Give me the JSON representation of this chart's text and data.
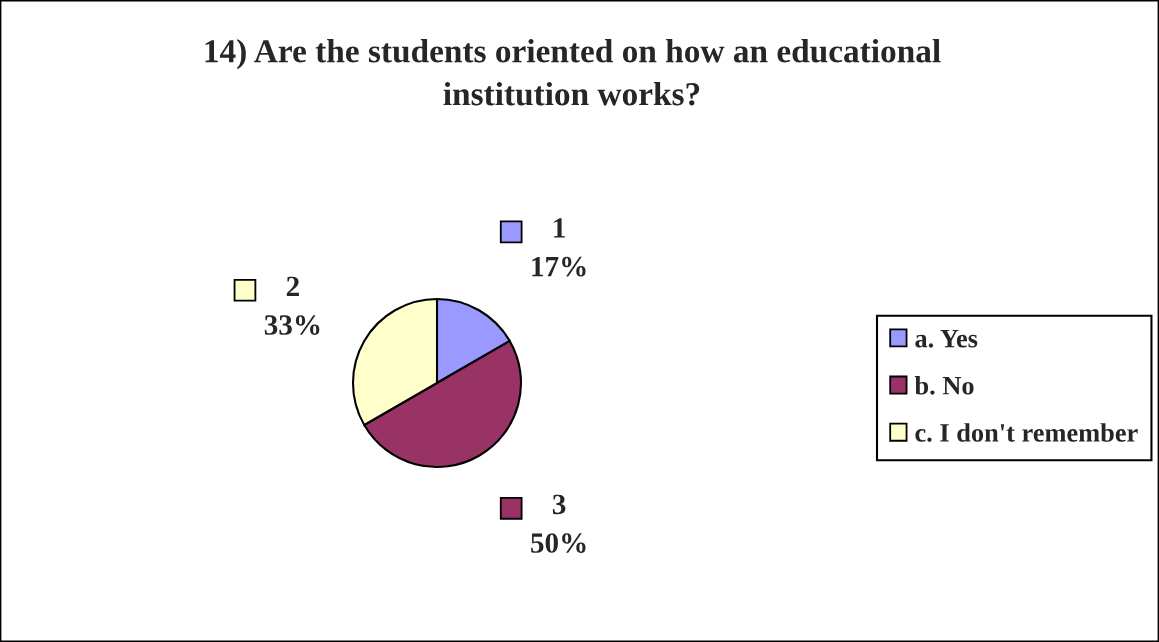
{
  "chart_data": {
    "type": "pie",
    "title": "14) Are the students oriented on how an educational\ninstitution works?",
    "categories": [
      "a. Yes",
      "b. No",
      "c. I don't remember"
    ],
    "values": [
      1,
      3,
      2
    ],
    "colors": [
      "#9999ff",
      "#993366",
      "#ffffcc"
    ],
    "value_labels": [
      "1\n17%",
      "3\n50%",
      "2\n33%"
    ],
    "legend": "right"
  }
}
